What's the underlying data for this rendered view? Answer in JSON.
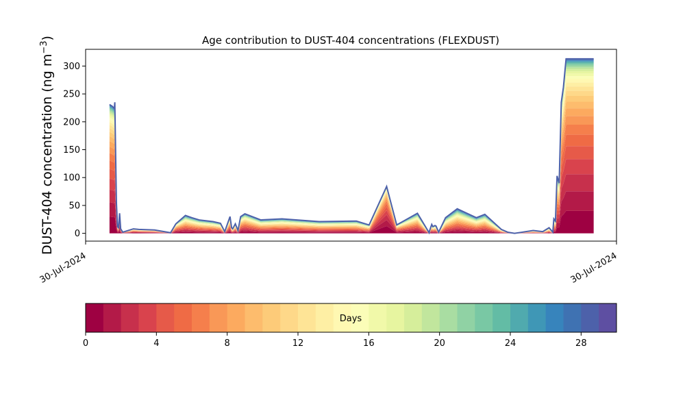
{
  "chart_data": {
    "type": "area",
    "stacked": true,
    "title": "Age contribution to DUST-404 concentrations (FLEXDUST)",
    "ylabel": "DUST-404 concentration (ng m",
    "ylabel_sup": "−3",
    "ylabel_close": ")",
    "xlabel": "",
    "x_tick_labels": [
      "30-Jul-2024",
      "30-Jul-2024"
    ],
    "yticks": [
      0,
      50,
      100,
      150,
      200,
      250,
      300
    ],
    "ylim": [
      -14,
      330
    ],
    "x_domain_note": "relative time within 30-Jul-2024 plotted as fraction of axis width",
    "x": [
      0.045,
      0.05,
      0.054,
      0.055,
      0.058,
      0.06,
      0.062,
      0.064,
      0.066,
      0.07,
      0.09,
      0.1,
      0.13,
      0.16,
      0.17,
      0.188,
      0.2,
      0.214,
      0.24,
      0.254,
      0.262,
      0.272,
      0.275,
      0.277,
      0.282,
      0.287,
      0.292,
      0.3,
      0.33,
      0.37,
      0.44,
      0.51,
      0.534,
      0.567,
      0.586,
      0.625,
      0.647,
      0.648,
      0.652,
      0.654,
      0.658,
      0.66,
      0.665,
      0.678,
      0.7,
      0.736,
      0.752,
      0.783,
      0.795,
      0.808,
      0.843,
      0.861,
      0.873,
      0.88,
      0.882,
      0.885,
      0.888,
      0.892,
      0.896,
      0.9,
      0.905,
      0.915,
      0.948,
      0.955,
      0.957
    ],
    "total": [
      231,
      228,
      224,
      235,
      55,
      12,
      10,
      36,
      8,
      2,
      8,
      7,
      6,
      1,
      17,
      32,
      28,
      24,
      21,
      18,
      3,
      30,
      10,
      8,
      17,
      5,
      30,
      35,
      24,
      26,
      21,
      22,
      15,
      84,
      15,
      36,
      1,
      5,
      16,
      12,
      14,
      13,
      2,
      28,
      44,
      28,
      34,
      7,
      2,
      0,
      5,
      3,
      10,
      2,
      26,
      22,
      103,
      90,
      235,
      262,
      313,
      313,
      313,
      313,
      313
    ],
    "shape_weights": [
      1,
      1,
      1,
      1,
      1,
      1,
      1,
      1,
      1,
      1,
      0.8,
      0.8,
      0.8,
      0.8,
      0.8,
      0.4,
      0.4,
      0.4,
      0.4,
      0.4,
      0.4,
      0.6,
      0.6,
      0.6,
      0.6,
      0.6,
      0.6,
      0.6,
      0.4,
      0.4,
      0.4,
      0.4,
      0.5,
      1.1,
      0.8,
      0.5,
      0.5,
      0.5,
      0.5,
      0.5,
      0.5,
      0.5,
      0.5,
      0.3,
      0.3,
      0.3,
      0.3,
      0.3,
      0.3,
      0.3,
      0.3,
      0.3,
      0.3,
      0.6,
      0.6,
      0.7,
      0.8,
      0.9,
      1,
      1,
      1,
      1,
      1,
      1,
      1
    ],
    "series_count": 30,
    "colorbar": {
      "label": "Days",
      "min": 0,
      "max": 30,
      "ticks": [
        0,
        4,
        8,
        12,
        16,
        20,
        24,
        28
      ],
      "colormap": "Spectral"
    },
    "colors": [
      "#9e0142",
      "#b31a48",
      "#c7304c",
      "#d9434d",
      "#e65a49",
      "#ef6b45",
      "#f57f4c",
      "#f99857",
      "#fcaa5f",
      "#fdbc6d",
      "#fdcb79",
      "#fed889",
      "#fee496",
      "#feefa4",
      "#fff8b2",
      "#fbfdb8",
      "#f1f9a9",
      "#e7f5a0",
      "#d6ee9b",
      "#c1e69d",
      "#a9dda2",
      "#90d2a4",
      "#79c8a4",
      "#63bca5",
      "#50aaae",
      "#3f97b6",
      "#3784bc",
      "#3f72b2",
      "#4d61aa",
      "#5e4fa2"
    ],
    "outline_color": "#4d61aa",
    "grid": false
  }
}
